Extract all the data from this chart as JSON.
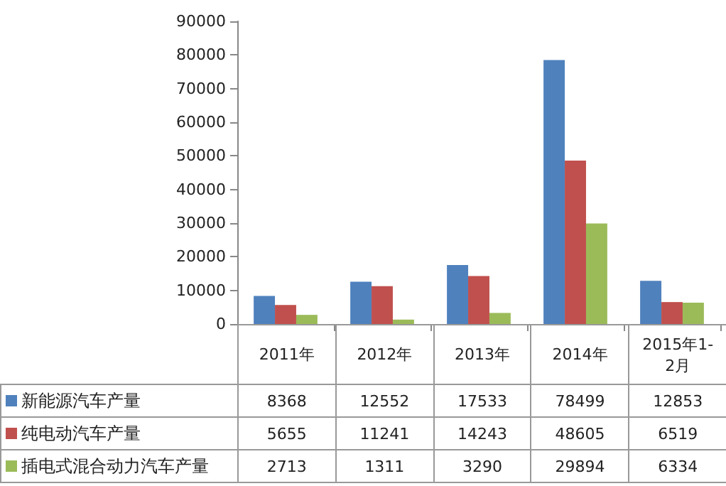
{
  "chart_data": {
    "type": "bar",
    "categories": [
      "2011年",
      "2012年",
      "2013年",
      "2014年",
      "2015年1-2月"
    ],
    "series": [
      {
        "name": "新能源汽车产量",
        "color": "#4f81bd",
        "values": [
          8368,
          12552,
          17533,
          78499,
          12853
        ]
      },
      {
        "name": "纯电动汽车产量",
        "color": "#c0504d",
        "values": [
          5655,
          11241,
          14243,
          48605,
          6519
        ]
      },
      {
        "name": "插电式混合动力汽车产量",
        "color": "#9bbb59",
        "values": [
          2713,
          1311,
          3290,
          29894,
          6334
        ]
      }
    ],
    "ylim": [
      0,
      90000
    ],
    "yticks": [
      0,
      10000,
      20000,
      30000,
      40000,
      50000,
      60000,
      70000,
      80000,
      90000
    ],
    "grid": false,
    "legend": "bottom left",
    "data_labels": true
  }
}
